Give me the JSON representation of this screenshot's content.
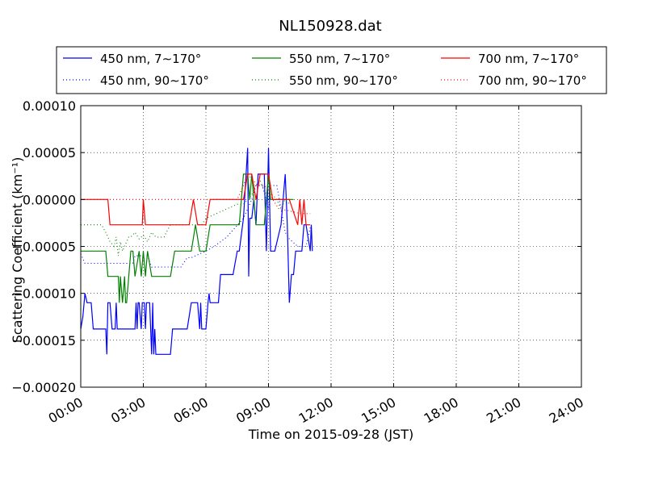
{
  "chart_data": {
    "type": "line",
    "title": "NL150928.dat",
    "xlabel": "Time on 2015-09-28 (JST)",
    "ylabel": "Scattering Coefficient (km⁻¹)",
    "x_unit": "hours",
    "xlim": [
      0,
      24
    ],
    "ylim": [
      -0.0002,
      0.0001
    ],
    "grid": true,
    "legend_position": "top (outside, 3 columns)",
    "x_ticks": [
      {
        "value": 0,
        "label": "00:00"
      },
      {
        "value": 3,
        "label": "03:00"
      },
      {
        "value": 6,
        "label": "06:00"
      },
      {
        "value": 9,
        "label": "09:00"
      },
      {
        "value": 12,
        "label": "12:00"
      },
      {
        "value": 15,
        "label": "15:00"
      },
      {
        "value": 18,
        "label": "18:00"
      },
      {
        "value": 21,
        "label": "21:00"
      },
      {
        "value": 24,
        "label": "24:00"
      }
    ],
    "y_ticks": [
      {
        "value": 0.0001,
        "label": "0.00010"
      },
      {
        "value": 5e-05,
        "label": "0.00005"
      },
      {
        "value": 0,
        "label": "0.00000"
      },
      {
        "value": -5e-05,
        "label": "−0.00005"
      },
      {
        "value": -0.0001,
        "label": "−0.00010"
      },
      {
        "value": -0.00015,
        "label": "−0.00015"
      },
      {
        "value": -0.0002,
        "label": "−0.00020"
      }
    ],
    "series": [
      {
        "name": "450 nm, 7∼170°",
        "color": "#0000ff",
        "style": "solid",
        "x": [
          0.0,
          0.1,
          0.2,
          0.3,
          0.5,
          0.6,
          1.2,
          1.25,
          1.3,
          1.4,
          1.5,
          1.65,
          1.7,
          1.75,
          1.9,
          2.0,
          2.3,
          2.6,
          2.65,
          2.7,
          2.75,
          2.8,
          2.9,
          2.95,
          3.05,
          3.1,
          3.15,
          3.3,
          3.4,
          3.45,
          3.5,
          3.55,
          3.6,
          3.7,
          4.0,
          4.3,
          4.4,
          4.5,
          5.1,
          5.3,
          5.4,
          5.6,
          5.7,
          5.75,
          5.8,
          6.0,
          6.1,
          6.15,
          6.2,
          6.4,
          6.6,
          6.7,
          7.0,
          7.3,
          7.5,
          7.6,
          7.8,
          8.0,
          8.05,
          8.1,
          8.2,
          8.3,
          8.4,
          8.5,
          8.7,
          8.8,
          8.9,
          9.0,
          9.1,
          9.2,
          9.3,
          9.6,
          9.8,
          9.9,
          10.0,
          10.1,
          10.2,
          10.3,
          10.4,
          10.6,
          10.7,
          10.8,
          11.0,
          11.05,
          11.1
        ],
        "y": [
          -0.000138,
          -0.000125,
          -0.0001,
          -0.00011,
          -0.00011,
          -0.000138,
          -0.000138,
          -0.000165,
          -0.00011,
          -0.00011,
          -0.000138,
          -0.000138,
          -0.00011,
          -0.000138,
          -0.000138,
          -0.000138,
          -0.000138,
          -0.000138,
          -0.00011,
          -0.000138,
          -0.00011,
          -0.00011,
          -0.000138,
          -0.00011,
          -0.00011,
          -0.000138,
          -0.00011,
          -0.00011,
          -0.000165,
          -0.00011,
          -0.000165,
          -0.000138,
          -0.000165,
          -0.000165,
          -0.000165,
          -0.000165,
          -0.000138,
          -0.000138,
          -0.000138,
          -0.00011,
          -0.00011,
          -0.00011,
          -0.000138,
          -0.00011,
          -0.000138,
          -0.000138,
          -0.00011,
          -0.0001,
          -0.00011,
          -0.00011,
          -0.00011,
          -8e-05,
          -8e-05,
          -8e-05,
          -5.5e-05,
          -5.5e-05,
          -2e-05,
          5.5e-05,
          -8.2e-05,
          -2e-05,
          -2e-05,
          0.0,
          -2.7e-05,
          2.7e-05,
          2.7e-05,
          2.7e-05,
          -5.5e-05,
          5.5e-05,
          -5.5e-05,
          -5.5e-05,
          -5.5e-05,
          -2.7e-05,
          2.7e-05,
          -2.7e-05,
          -0.00011,
          -8e-05,
          -8e-05,
          -5.5e-05,
          -5.5e-05,
          -5.5e-05,
          -2.7e-05,
          -2.7e-05,
          -5.5e-05,
          -2.7e-05,
          -5.5e-05
        ]
      },
      {
        "name": "450 nm, 90∼170°",
        "color": "#0000ff",
        "style": "dotted",
        "x": [
          0.0,
          0.2,
          1.0,
          1.1,
          2.0,
          2.5,
          2.6,
          2.8,
          3.0,
          3.2,
          3.4,
          3.5,
          4.0,
          4.8,
          5.1,
          5.3,
          6.0,
          6.4,
          6.7,
          7.0,
          7.4,
          7.8,
          8.0,
          8.2,
          8.4,
          8.7,
          9.0,
          9.1,
          9.4,
          9.8,
          10.0,
          10.4,
          10.8,
          11.0
        ],
        "y": [
          -5.8e-05,
          -6.8e-05,
          -6.8e-05,
          -6.8e-05,
          -6.8e-05,
          -6.8e-05,
          -6e-05,
          -6e-05,
          -6e-05,
          -6e-05,
          -7.2e-05,
          -7.2e-05,
          -7.2e-05,
          -7.2e-05,
          -6.2e-05,
          -6.2e-05,
          -5.5e-05,
          -5e-05,
          -4.5e-05,
          -4e-05,
          -3e-05,
          -2e-05,
          -1e-05,
          0.0,
          1.5e-05,
          1.5e-05,
          -1e-05,
          1.5e-05,
          1.5e-05,
          -3.5e-05,
          -4.2e-05,
          -5e-05,
          -5e-05,
          -3e-05
        ]
      },
      {
        "name": "550 nm, 7∼170°",
        "color": "#008000",
        "style": "solid",
        "x": [
          0.0,
          1.2,
          1.3,
          1.5,
          1.8,
          1.85,
          1.9,
          2.0,
          2.1,
          2.15,
          2.2,
          2.4,
          2.5,
          2.6,
          2.8,
          2.9,
          3.0,
          3.1,
          3.2,
          3.4,
          3.6,
          4.0,
          4.3,
          4.5,
          5.0,
          5.2,
          5.3,
          5.5,
          5.7,
          5.8,
          6.0,
          6.2,
          6.4,
          6.8,
          7.0,
          7.2,
          7.6,
          7.7,
          7.8,
          8.0,
          8.1,
          8.2,
          8.3,
          8.4,
          8.6,
          8.8,
          9.0,
          9.1,
          9.2,
          9.4,
          9.6,
          10.0,
          10.2
        ],
        "y": [
          -5.5e-05,
          -5.5e-05,
          -8.2e-05,
          -8.2e-05,
          -8.2e-05,
          -0.00011,
          -8.2e-05,
          -0.00011,
          -8.2e-05,
          -0.00011,
          -0.00011,
          -5.5e-05,
          -5.5e-05,
          -8.2e-05,
          -5.5e-05,
          -8.2e-05,
          -5.5e-05,
          -8.2e-05,
          -5.5e-05,
          -8.2e-05,
          -8.2e-05,
          -8.2e-05,
          -8.2e-05,
          -5.5e-05,
          -5.5e-05,
          -5.5e-05,
          -5.5e-05,
          -2.7e-05,
          -5.5e-05,
          -5.5e-05,
          -5.5e-05,
          -2.7e-05,
          -2.7e-05,
          -2.7e-05,
          -2.7e-05,
          -2.7e-05,
          -2.7e-05,
          0.0,
          2.7e-05,
          2.7e-05,
          0.0,
          2.7e-05,
          0.0,
          -2.7e-05,
          -2.7e-05,
          -2.7e-05,
          2.7e-05,
          0.0,
          0.0,
          0.0,
          0.0,
          0.0,
          0.0
        ]
      },
      {
        "name": "550 nm, 90∼170°",
        "color": "#008000",
        "style": "dotted",
        "x": [
          0.0,
          0.5,
          1.0,
          1.2,
          1.4,
          1.6,
          1.7,
          1.8,
          1.9,
          2.0,
          2.3,
          2.4,
          2.6,
          2.8,
          3.0,
          3.2,
          3.4,
          3.6,
          3.8,
          4.0,
          4.1,
          4.3,
          4.8,
          5.0,
          5.2,
          5.4,
          5.6,
          5.8,
          6.0,
          6.5,
          7.0,
          7.5,
          7.8,
          8.0,
          8.2,
          8.4,
          8.6,
          8.8,
          9.0,
          9.2,
          9.4,
          9.6,
          9.8,
          10.0
        ],
        "y": [
          -2.7e-05,
          -2.7e-05,
          -2.7e-05,
          -3.5e-05,
          -4.5e-05,
          -5e-05,
          -4e-05,
          -6e-05,
          -4.5e-05,
          -5.5e-05,
          -4e-05,
          -4e-05,
          -3.5e-05,
          -4.2e-05,
          -3.8e-05,
          -4.5e-05,
          -3.5e-05,
          -4e-05,
          -4e-05,
          -4e-05,
          -3.5e-05,
          -2.7e-05,
          -2.7e-05,
          -2.7e-05,
          -2.7e-05,
          -2.7e-05,
          -2.7e-05,
          -2.7e-05,
          -2e-05,
          -1.5e-05,
          -1e-05,
          -5e-06,
          -5e-06,
          0.0,
          5e-06,
          1.5e-05,
          2e-05,
          1e-05,
          0.0,
          5e-06,
          0.0,
          -1e-05,
          0.0,
          -5e-06
        ]
      },
      {
        "name": "700 nm, 7∼170°",
        "color": "#ff0000",
        "style": "solid",
        "x": [
          0.0,
          1.0,
          1.3,
          1.4,
          1.5,
          1.9,
          2.0,
          2.6,
          2.8,
          2.95,
          3.0,
          3.1,
          3.2,
          4.0,
          5.0,
          5.2,
          5.4,
          5.6,
          5.8,
          6.0,
          6.2,
          6.4,
          6.8,
          7.0,
          7.2,
          7.4,
          7.6,
          7.8,
          8.0,
          8.2,
          8.4,
          8.6,
          8.8,
          9.0,
          9.2,
          9.4,
          9.6,
          10.0,
          10.4,
          10.5,
          10.6,
          10.7,
          10.8,
          11.0
        ],
        "y": [
          0.0,
          0.0,
          0.0,
          -2.7e-05,
          -2.7e-05,
          -2.7e-05,
          -2.7e-05,
          -2.7e-05,
          -2.7e-05,
          -2.7e-05,
          0.0,
          -2.7e-05,
          -2.7e-05,
          -2.7e-05,
          -2.7e-05,
          -2.7e-05,
          0.0,
          -2.7e-05,
          -2.7e-05,
          -2.7e-05,
          0.0,
          0.0,
          0.0,
          0.0,
          0.0,
          0.0,
          0.0,
          0.0,
          2.7e-05,
          2.7e-05,
          0.0,
          2.7e-05,
          2.7e-05,
          2.7e-05,
          0.0,
          0.0,
          0.0,
          0.0,
          -2.7e-05,
          0.0,
          -2.7e-05,
          0.0,
          -2.7e-05,
          -2.7e-05
        ]
      },
      {
        "name": "700 nm, 90∼170°",
        "color": "#ff0000",
        "style": "dotted",
        "x": [
          0.0,
          0.5,
          1.0,
          1.2,
          1.5,
          2.0,
          2.5,
          3.0,
          3.5,
          4.0,
          4.5,
          5.0,
          5.5,
          6.0,
          6.5,
          7.0,
          7.5,
          7.8,
          8.0,
          8.2,
          8.5,
          8.8,
          9.0,
          9.2,
          9.5,
          10.0,
          10.5,
          11.0
        ],
        "y": [
          0.0,
          0.0,
          0.0,
          0.0,
          0.0,
          0.0,
          0.0,
          0.0,
          0.0,
          0.0,
          0.0,
          0.0,
          0.0,
          0.0,
          0.0,
          0.0,
          0.0,
          1.5e-05,
          2.7e-05,
          2.2e-05,
          1.5e-05,
          1.5e-05,
          1e-05,
          0.0,
          -1e-05,
          -1.2e-05,
          -1.5e-05,
          -1.5e-05
        ]
      }
    ]
  }
}
